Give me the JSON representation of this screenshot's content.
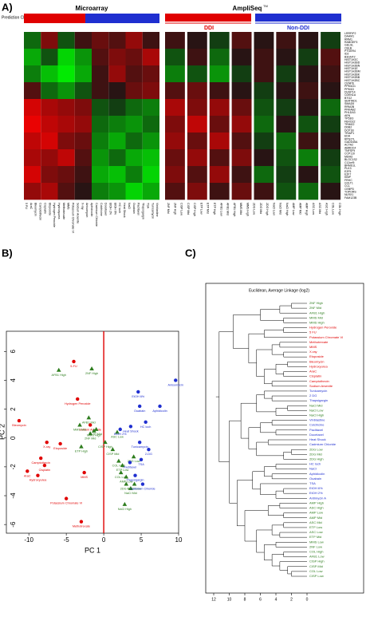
{
  "panels": {
    "a": "A)",
    "b": "B)",
    "c": "C)"
  },
  "heatmap": {
    "prediction_label": "Prediction Class",
    "microarray_title": "Microarray",
    "ampliseq_title": "AmpliSeq",
    "ampliseq_tm": "TM",
    "ddi_label": "DDI",
    "nonddi_label": "Non-DDI",
    "zlim": [
      -1,
      1
    ],
    "genes": [
      "LRRFIP2",
      "DAAM1",
      "RRM1",
      "RABGEF3",
      "GELSL",
      "CBLB",
      "PTGER4",
      "ID2",
      "B3GNT2",
      "HIST1H2C",
      "HIST1H2BD",
      "HIST1H2BN",
      "HIST1H1E",
      "HIST1H2BM",
      "HIST1H2BK",
      "HIST1H2BB",
      "HIST1H2BC",
      "CENPE",
      "PPM1D1",
      "PPM1D",
      "DUSP14",
      "CDKN1A",
      "BTG2",
      "SERTAD1",
      "SMAD5",
      "RRM2B",
      "PRKAB2",
      "PHLDA3",
      "AEN",
      "TP53I3",
      "FBXO22",
      "TRIM22",
      "DDB2",
      "DCP1B",
      "TRIAP1",
      "EDA",
      "RPS27L",
      "GADD45A",
      "ACTA2",
      "ABRDC4",
      "TNFSF9",
      "CCP110",
      "MDM2",
      "BLOC1S2",
      "C12orf5",
      "BRMS1L",
      "PLK3",
      "E2F5",
      "E2F7",
      "KBIP",
      "FRHC",
      "GVLT1",
      "CCL",
      "CEBPD",
      "TOPORS",
      "NLRX1",
      "FAM123B"
    ],
    "microarray_samples": [
      "5 FU",
      "AraC",
      "Bleomycin",
      "Camptothecin",
      "Cisplatin",
      "Etoposide",
      "Hydrogen Peroxide",
      "Hydroxyurea",
      "Methotrexate",
      "MMS",
      "Potassium Chromate VI",
      "Sodium Arsenite",
      "X-ray",
      "Anisomycin",
      "Aphidicolin",
      "Cadmium Chloride",
      "Colchicine",
      "Docetaxel",
      "EtOH 2%",
      "EtOH 6%",
      "HC loch",
      "Heat Shock",
      "NaCl",
      "Ouabain",
      "Paclitaxel",
      "Thapsigargin",
      "TSA",
      "Tunicamycin",
      "Vinblastine"
    ],
    "ampliseq_samples": [
      "2NF Mid",
      "2NF High",
      "CISP Low",
      "CISP Mid",
      "CISP High",
      "ETP Low",
      "ETP Mid",
      "ETP High",
      "AFB1 Low",
      "AFB1 Mid",
      "AFB1 High",
      "MMS Mid",
      "MMS High",
      "2DG Low",
      "2DG Mid",
      "2DG High",
      "NaCl Low",
      "NaCl Mid",
      "NaCl High",
      "AMP Low",
      "AMP Mid",
      "AMP High",
      "ASC Low",
      "ASC Mid",
      "ASC High",
      "COL Low",
      "COL High"
    ],
    "microarray_values": [
      [
        -0.3,
        0.4,
        -0.2,
        0.1,
        0.3,
        0.2,
        0.5,
        0.1
      ],
      [
        -0.6,
        -0.2,
        -0.8,
        -0.5,
        0.2,
        0.4,
        0.3,
        0.6
      ],
      [
        -0.4,
        -0.7,
        -0.9,
        -0.6,
        0.1,
        0.5,
        0.2,
        0.3
      ],
      [
        0.2,
        -0.3,
        -0.5,
        -0.2,
        0.1,
        0,
        0.3,
        0.4
      ],
      [
        0.8,
        0.6,
        0.5,
        0.4,
        -0.2,
        -0.1,
        -0.3,
        -0.4
      ],
      [
        0.9,
        0.7,
        0.6,
        0.5,
        -0.3,
        -0.4,
        -0.5,
        -0.3
      ],
      [
        0.7,
        0.8,
        0.4,
        0.3,
        -0.4,
        -0.6,
        -0.3,
        -0.5
      ],
      [
        0.6,
        0.5,
        0.7,
        0.2,
        -0.5,
        -0.3,
        -0.6,
        -0.7
      ],
      [
        0.8,
        0.4,
        0.3,
        0.1,
        -0.6,
        -0.7,
        -0.4,
        -0.8
      ],
      [
        0.5,
        0.6,
        0.2,
        0,
        -0.4,
        -0.5,
        -0.8,
        -0.6
      ]
    ],
    "ampliseq_values": [
      [
        0.1,
        0,
        -0.1,
        0.2,
        0,
        0.1,
        0,
        -0.1
      ],
      [
        -0.2,
        0.1,
        -0.3,
        0,
        0.1,
        0,
        -0.1,
        0.2
      ],
      [
        -0.4,
        -0.2,
        -0.5,
        -0.1,
        0.1,
        -0.1,
        0,
        0.1
      ],
      [
        0.2,
        0.3,
        0.1,
        0,
        -0.1,
        0,
        0.1,
        0
      ],
      [
        0.6,
        0.4,
        0.5,
        0.3,
        -0.2,
        -0.1,
        0,
        -0.3
      ],
      [
        0.4,
        0.7,
        0.3,
        0.5,
        -0.3,
        0,
        -0.2,
        -0.1
      ],
      [
        0.5,
        0.3,
        0.6,
        0.2,
        -0.1,
        -0.3,
        0.1,
        0
      ],
      [
        0.3,
        0.5,
        0.2,
        0.4,
        0,
        -0.2,
        -0.4,
        -0.1
      ],
      [
        0.4,
        0.2,
        0.5,
        0.1,
        -0.3,
        -0.1,
        0,
        -0.2
      ],
      [
        0.2,
        0.4,
        0.1,
        0.3,
        0.1,
        -0.2,
        -0.3,
        0
      ]
    ]
  },
  "chart_data": [
    {
      "type": "scatter",
      "x_label": "PC 1",
      "y_label": "PC 2",
      "xlim": [
        -13,
        10
      ],
      "ylim": [
        -6.6,
        7.4
      ],
      "xticks": [
        -10,
        -5,
        0,
        5,
        10
      ],
      "yticks": [
        -6,
        -4,
        -2,
        0,
        2,
        4,
        6
      ],
      "zero_line_color": "#e00000",
      "series": [
        {
          "color": "#e00000",
          "marker": "circle",
          "labels": [
            "5-FU",
            "Hydrogen Peroxide",
            "Bleomycin",
            "Sodium Arsenite",
            "X-ray",
            "Etoposide",
            "Camptothecin",
            "Cisplatin",
            "AraC",
            "Hydroxyurea",
            "MMS",
            "Potassium Chromate VI",
            "Methotrexate"
          ],
          "x": [
            -4,
            -3.5,
            -11.3,
            -1.8,
            -7.6,
            -5.8,
            -8.4,
            -7.9,
            -10.2,
            -8.8,
            -2.6,
            -5,
            -3
          ],
          "y": [
            5.3,
            2.7,
            1.2,
            0.9,
            -0.3,
            -0.4,
            -1.4,
            -1.9,
            -2.3,
            -2.6,
            -2.4,
            -4.2,
            -5.8
          ]
        },
        {
          "color": "#2e7d1e",
          "marker": "triangle",
          "labels": [
            "2NF High",
            "AFB1 High",
            "AFB1 Mid",
            "MMS Mid",
            "MMS High",
            "2NF Mid",
            "ETP Mid",
            "ETP High",
            "CISP High",
            "CISP Mid",
            "COL High",
            "ETP Low",
            "COL Low",
            "AMP Low",
            "2DG Mid",
            "NaCl Mid",
            "NaCl Low",
            "NaCl High",
            "ASC Low",
            "2DG Low"
          ],
          "x": [
            -1.6,
            -6,
            -2,
            -3.2,
            -1.3,
            -1.8,
            -1,
            -3,
            0.2,
            1.2,
            2,
            2.5,
            2.3,
            3,
            3,
            3.6,
            4.1,
            2.8,
            1.8,
            4
          ],
          "y": [
            4.8,
            4.7,
            1.4,
            0.9,
            0.5,
            0.3,
            0.6,
            -0.6,
            -0.3,
            -0.8,
            -1.6,
            -1.9,
            -2.4,
            -2.7,
            -3.2,
            -3.5,
            -3.2,
            -4.6,
            0.4,
            -1.3
          ]
        },
        {
          "color": "#1f2fd0",
          "marker": "circle",
          "labels": [
            "Anisomycin",
            "EtOH 6%",
            "Ouabain",
            "Aphidicolin",
            "HC loch",
            "Heat Shock",
            "EtOH 2%",
            "Tunicamycin",
            "2-DG",
            "TSA",
            "Thapsigargin",
            "Cadmium Chloride",
            "Paclitaxel"
          ],
          "x": [
            9.6,
            4.6,
            4.8,
            7.5,
            5.6,
            3.6,
            2.2,
            4.8,
            6,
            5,
            4.2,
            5.2,
            3.5
          ],
          "y": [
            4,
            3.2,
            2.2,
            2.2,
            1.1,
            0.8,
            0.6,
            -0.3,
            -0.8,
            -1.5,
            -2.6,
            -3.2,
            -1.7
          ]
        }
      ]
    },
    {
      "type": "dendrogram",
      "title": "Euclidean, Average Linkage (log2)",
      "xlim": [
        12,
        0
      ],
      "xticks": [
        12,
        10,
        8,
        6,
        4,
        2,
        0
      ],
      "leaves": [
        "2NF High",
        "2NF Mid",
        "AFB1 High",
        "MMS Mid",
        "MMS High",
        "Hydrogen Peroxide",
        "5 FU",
        "Potassium Chromate VI",
        "Methotrexate",
        "MMS",
        "X-ray",
        "Etoposide",
        "Bleomycin",
        "Hydroxyurea",
        "AraC",
        "Cisplatin",
        "Camptothecin",
        "Sodium Arsenite",
        "Tunicamycin",
        "2 DG",
        "Thapsigargin",
        "NaCl Mid",
        "NaCl Low",
        "NaCl High",
        "Vinblastine",
        "Colchicine",
        "Paclitaxel",
        "Docetaxel",
        "Heat Shock",
        "Cadmium Chloride",
        "2DG Low",
        "2DG Mid",
        "2DG High",
        "HC loch",
        "NaCl",
        "Aphidicolin",
        "Ouabain",
        "TSA",
        "EtOH 6%",
        "EtOH 2%",
        "Antimycin A",
        "AMP High",
        "ASC High",
        "AMP Low",
        "AMP Mid",
        "ASC Mid",
        "ETP Low",
        "ASC Low",
        "ETP Mid",
        "MMS Low",
        "2NF Low",
        "COL High",
        "AFB1 Low",
        "CISP High",
        "CISP Mid",
        "COL Low",
        "CISP Low"
      ],
      "leaf_colors": [
        "#2e7d1e",
        "#2e7d1e",
        "#2e7d1e",
        "#2e7d1e",
        "#2e7d1e",
        "#e00000",
        "#e00000",
        "#e00000",
        "#e00000",
        "#e00000",
        "#e00000",
        "#e00000",
        "#e00000",
        "#e00000",
        "#e00000",
        "#e00000",
        "#e00000",
        "#e00000",
        "#1f2fd0",
        "#1f2fd0",
        "#1f2fd0",
        "#2e7d1e",
        "#2e7d1e",
        "#2e7d1e",
        "#1f2fd0",
        "#1f2fd0",
        "#1f2fd0",
        "#1f2fd0",
        "#1f2fd0",
        "#1f2fd0",
        "#2e7d1e",
        "#2e7d1e",
        "#2e7d1e",
        "#1f2fd0",
        "#1f2fd0",
        "#1f2fd0",
        "#1f2fd0",
        "#1f2fd0",
        "#1f2fd0",
        "#1f2fd0",
        "#1f2fd0",
        "#2e7d1e",
        "#2e7d1e",
        "#2e7d1e",
        "#2e7d1e",
        "#2e7d1e",
        "#2e7d1e",
        "#2e7d1e",
        "#2e7d1e",
        "#2e7d1e",
        "#2e7d1e",
        "#2e7d1e",
        "#2e7d1e",
        "#2e7d1e",
        "#2e7d1e",
        "#2e7d1e",
        "#2e7d1e"
      ],
      "tree": [
        11.3,
        [
          9.5,
          [
            6,
            [
              3.5,
              [
                2,
                0,
                1
              ],
              2
            ],
            [
              3,
              3,
              4
            ]
          ],
          [
            7.5,
            [
              5.5,
              [
                3,
                5,
                6
              ],
              7
            ],
            [
              6.5,
              [
                4.5,
                [
                  3.5,
                  8,
                  9
                ],
                [
                  3,
                  10,
                  11
                ]
              ],
              [
                5.5,
                [
                  4,
                  [
                    2.5,
                    12,
                    13
                  ],
                  [
                    3,
                    14,
                    15
                  ]
                ],
                [
                  4.5,
                  16,
                  17
                ]
              ]
            ]
          ]
        ],
        [
          10,
          [
            8.5,
            [
              6.5,
              [
                5.5,
                18,
                [
                  4.5,
                  19,
                  20
                ]
              ],
              [
                4,
                [
                  2.5,
                  21,
                  22
                ],
                23
              ]
            ],
            [
              7.5,
              [
                6,
                [
                  4.5,
                  24,
                  25
                ],
                [
                  4,
                  26,
                  27
                ]
              ],
              [
                6.5,
                [
                  5,
                  28,
                  29
                ],
                [
                  3,
                  [
                    2,
                    30,
                    31
                  ],
                  32
                ]
              ]
            ]
          ],
          [
            9,
            [
              7,
              [
                5.5,
                [
                  4,
                  33,
                  34
                ],
                [
                  4.5,
                  35,
                  36
                ]
              ],
              [
                6,
                37,
                [
                  4,
                  [
                    3,
                    38,
                    39
                  ],
                  40
                ]
              ]
            ],
            [
              8,
              [
                5,
                [
                  3.5,
                  41,
                  42
                ],
                [
                  3,
                  43,
                  44
                ]
              ],
              [
                6.5,
                [
                  4.5,
                  [
                    3,
                    45,
                    46
                  ],
                  [
                    3.5,
                    47,
                    48
                  ]
                ],
                [
                  5.5,
                  [
                    4,
                    49,
                    50
                  ],
                  [
                    4.5,
                    [
                      3,
                      51,
                      52
                    ],
                    [
                      3.5,
                      53,
                      [
                        2.5,
                        54,
                        [
                          2,
                          55,
                          56
                        ]
                      ]
                    ]
                  ]
                ]
              ]
            ]
          ]
        ]
      ]
    }
  ]
}
